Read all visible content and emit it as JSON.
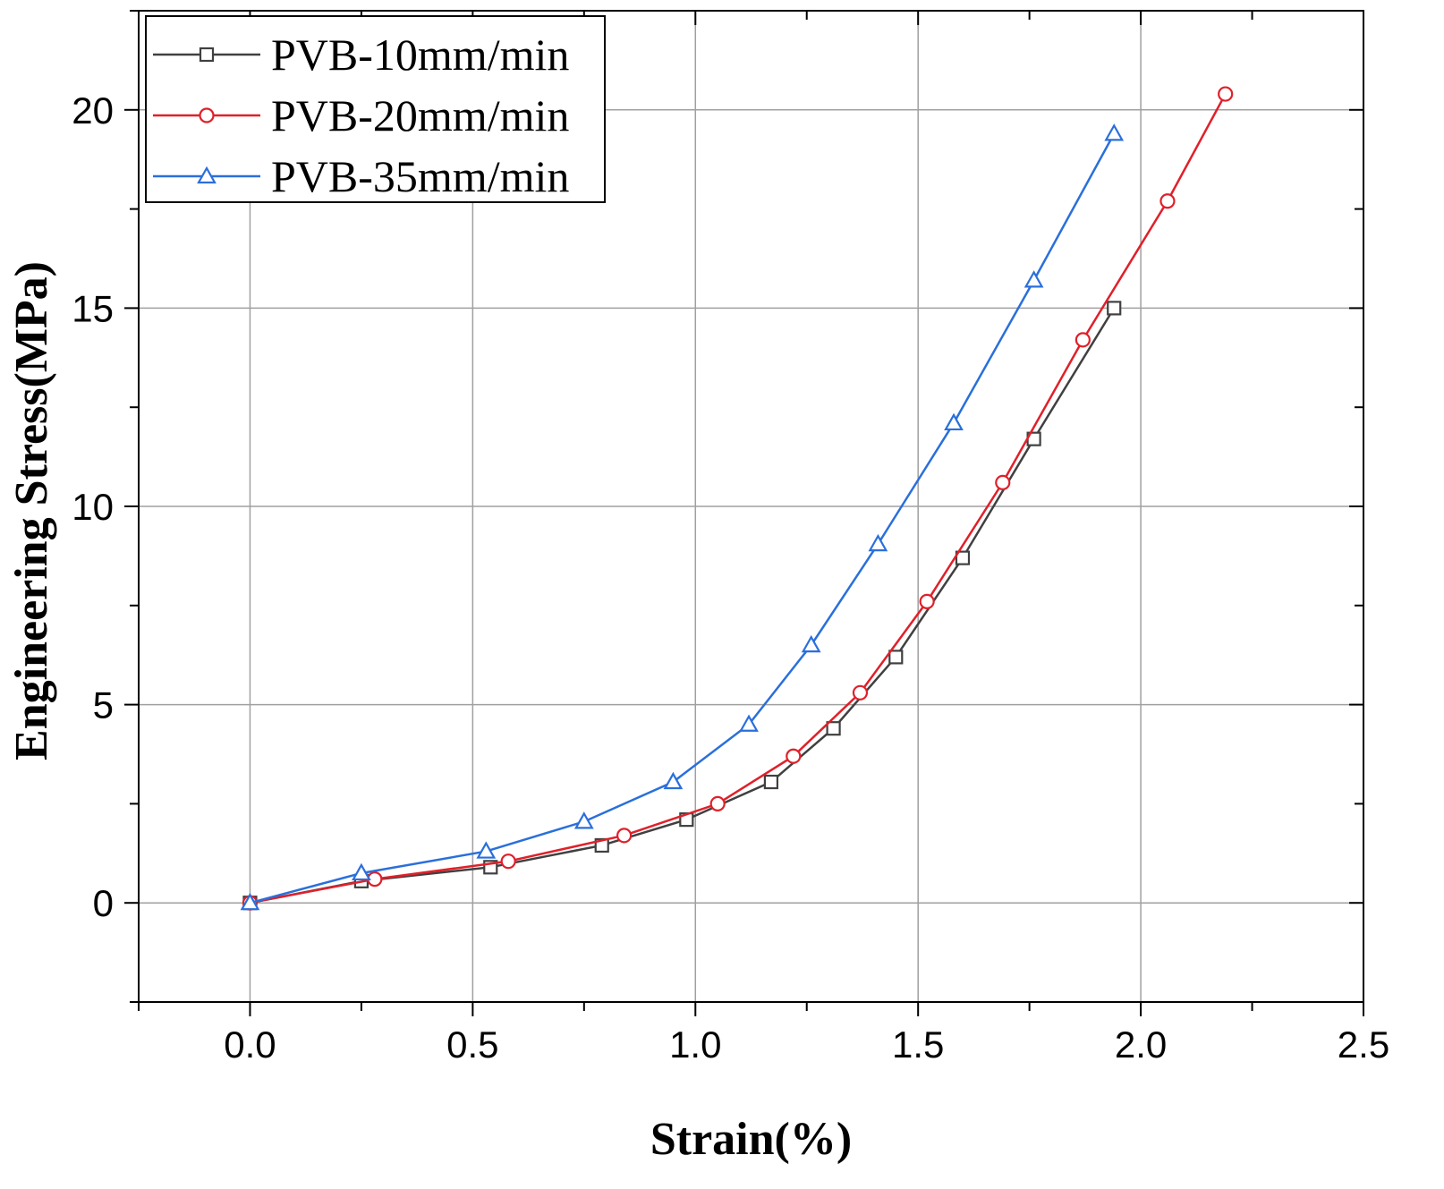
{
  "chart_data": {
    "type": "line",
    "xlabel": "Strain(%)",
    "ylabel": "Engineering Stress(MPa)",
    "xlim": [
      -0.25,
      2.5
    ],
    "ylim": [
      -2.5,
      22.5
    ],
    "x_ticks": [
      0.0,
      0.5,
      1.0,
      1.5,
      2.0,
      2.5
    ],
    "x_tick_labels": [
      "0.0",
      "0.5",
      "1.0",
      "1.5",
      "2.0",
      "2.5"
    ],
    "y_ticks": [
      0,
      5,
      10,
      15,
      20
    ],
    "y_tick_labels": [
      "0",
      "5",
      "10",
      "15",
      "20"
    ],
    "grid": true,
    "legend_position": "top-left",
    "series": [
      {
        "name": "PVB-10mm/min",
        "color": "#404040",
        "marker": "square",
        "x": [
          0.0,
          0.25,
          0.54,
          0.79,
          0.98,
          1.17,
          1.31,
          1.45,
          1.6,
          1.76,
          1.94
        ],
        "y": [
          0.0,
          0.55,
          0.9,
          1.45,
          2.1,
          3.05,
          4.4,
          6.2,
          8.7,
          11.7,
          15.0
        ]
      },
      {
        "name": "PVB-20mm/min",
        "color": "#e0202a",
        "marker": "circle",
        "x": [
          0.0,
          0.28,
          0.58,
          0.84,
          1.05,
          1.22,
          1.37,
          1.52,
          1.69,
          1.87,
          2.06,
          2.19
        ],
        "y": [
          0.0,
          0.6,
          1.05,
          1.7,
          2.5,
          3.7,
          5.3,
          7.6,
          10.6,
          14.2,
          17.7,
          20.4
        ]
      },
      {
        "name": "PVB-35mm/min",
        "color": "#2a6fdb",
        "marker": "triangle",
        "x": [
          0.0,
          0.25,
          0.53,
          0.75,
          0.95,
          1.12,
          1.26,
          1.41,
          1.58,
          1.76,
          1.94
        ],
        "y": [
          0.0,
          0.75,
          1.3,
          2.05,
          3.05,
          4.5,
          6.5,
          9.05,
          12.1,
          15.7,
          19.4
        ]
      }
    ]
  }
}
